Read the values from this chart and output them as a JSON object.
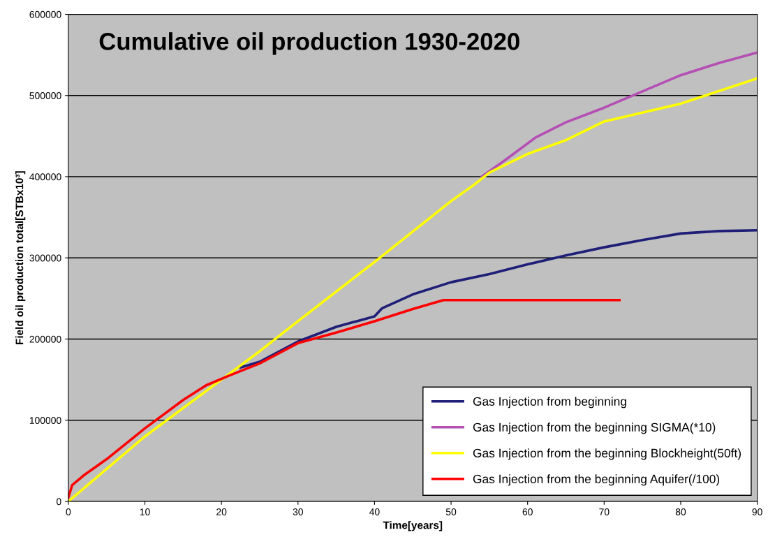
{
  "chart_data": {
    "type": "line",
    "title": "Cumulative oil production 1930-2020",
    "xlabel": "Time[years]",
    "ylabel": "Field oil production total[STBx10³]",
    "xlim": [
      0,
      90
    ],
    "xticks": [
      0,
      10,
      20,
      30,
      40,
      50,
      60,
      70,
      80,
      90
    ],
    "ylim": [
      0,
      600000
    ],
    "yticks": [
      0,
      100000,
      200000,
      300000,
      400000,
      500000,
      600000
    ],
    "grid": "y",
    "legend": "bottom right",
    "marker": "none",
    "line_style": "solid",
    "series": [
      {
        "name": "Gas Injection from beginning",
        "color": "#1f1f78",
        "x": [
          22.5,
          25,
          30,
          35,
          40,
          41,
          45,
          50,
          55,
          60,
          65,
          70,
          75,
          80,
          85,
          90
        ],
        "values": [
          165000,
          172000,
          197000,
          215000,
          228000,
          238000,
          255000,
          270000,
          280000,
          292000,
          303000,
          313000,
          322000,
          330000,
          333000,
          334000
        ]
      },
      {
        "name": "Gas Injection from the beginning SIGMA(*10)",
        "color": "#b450b4",
        "x": [
          54,
          57,
          61,
          65,
          70,
          75,
          80,
          85,
          90
        ],
        "values": [
          400000,
          420000,
          448000,
          467000,
          485000,
          505000,
          525000,
          540000,
          553000
        ]
      },
      {
        "name": "Gas Injection from the beginning Blockheight(50ft)",
        "color": "#ffff00",
        "x": [
          0,
          10,
          20,
          25,
          30,
          40,
          50,
          53,
          55,
          60,
          65,
          70,
          80,
          90
        ],
        "values": [
          0,
          80000,
          150000,
          185000,
          222000,
          295000,
          370000,
          390000,
          405000,
          428000,
          445000,
          468000,
          490000,
          521000
        ]
      },
      {
        "name": "Gas Injection from the beginning Aquifer(/100)",
        "color": "#ff0000",
        "x": [
          0,
          0.5,
          2,
          5,
          10,
          15,
          18,
          21,
          25,
          30,
          35,
          40,
          45,
          49,
          72
        ],
        "values": [
          5000,
          20000,
          32000,
          52000,
          90000,
          125000,
          143000,
          155000,
          170000,
          195000,
          208000,
          222000,
          237000,
          248000,
          248000
        ]
      }
    ]
  }
}
